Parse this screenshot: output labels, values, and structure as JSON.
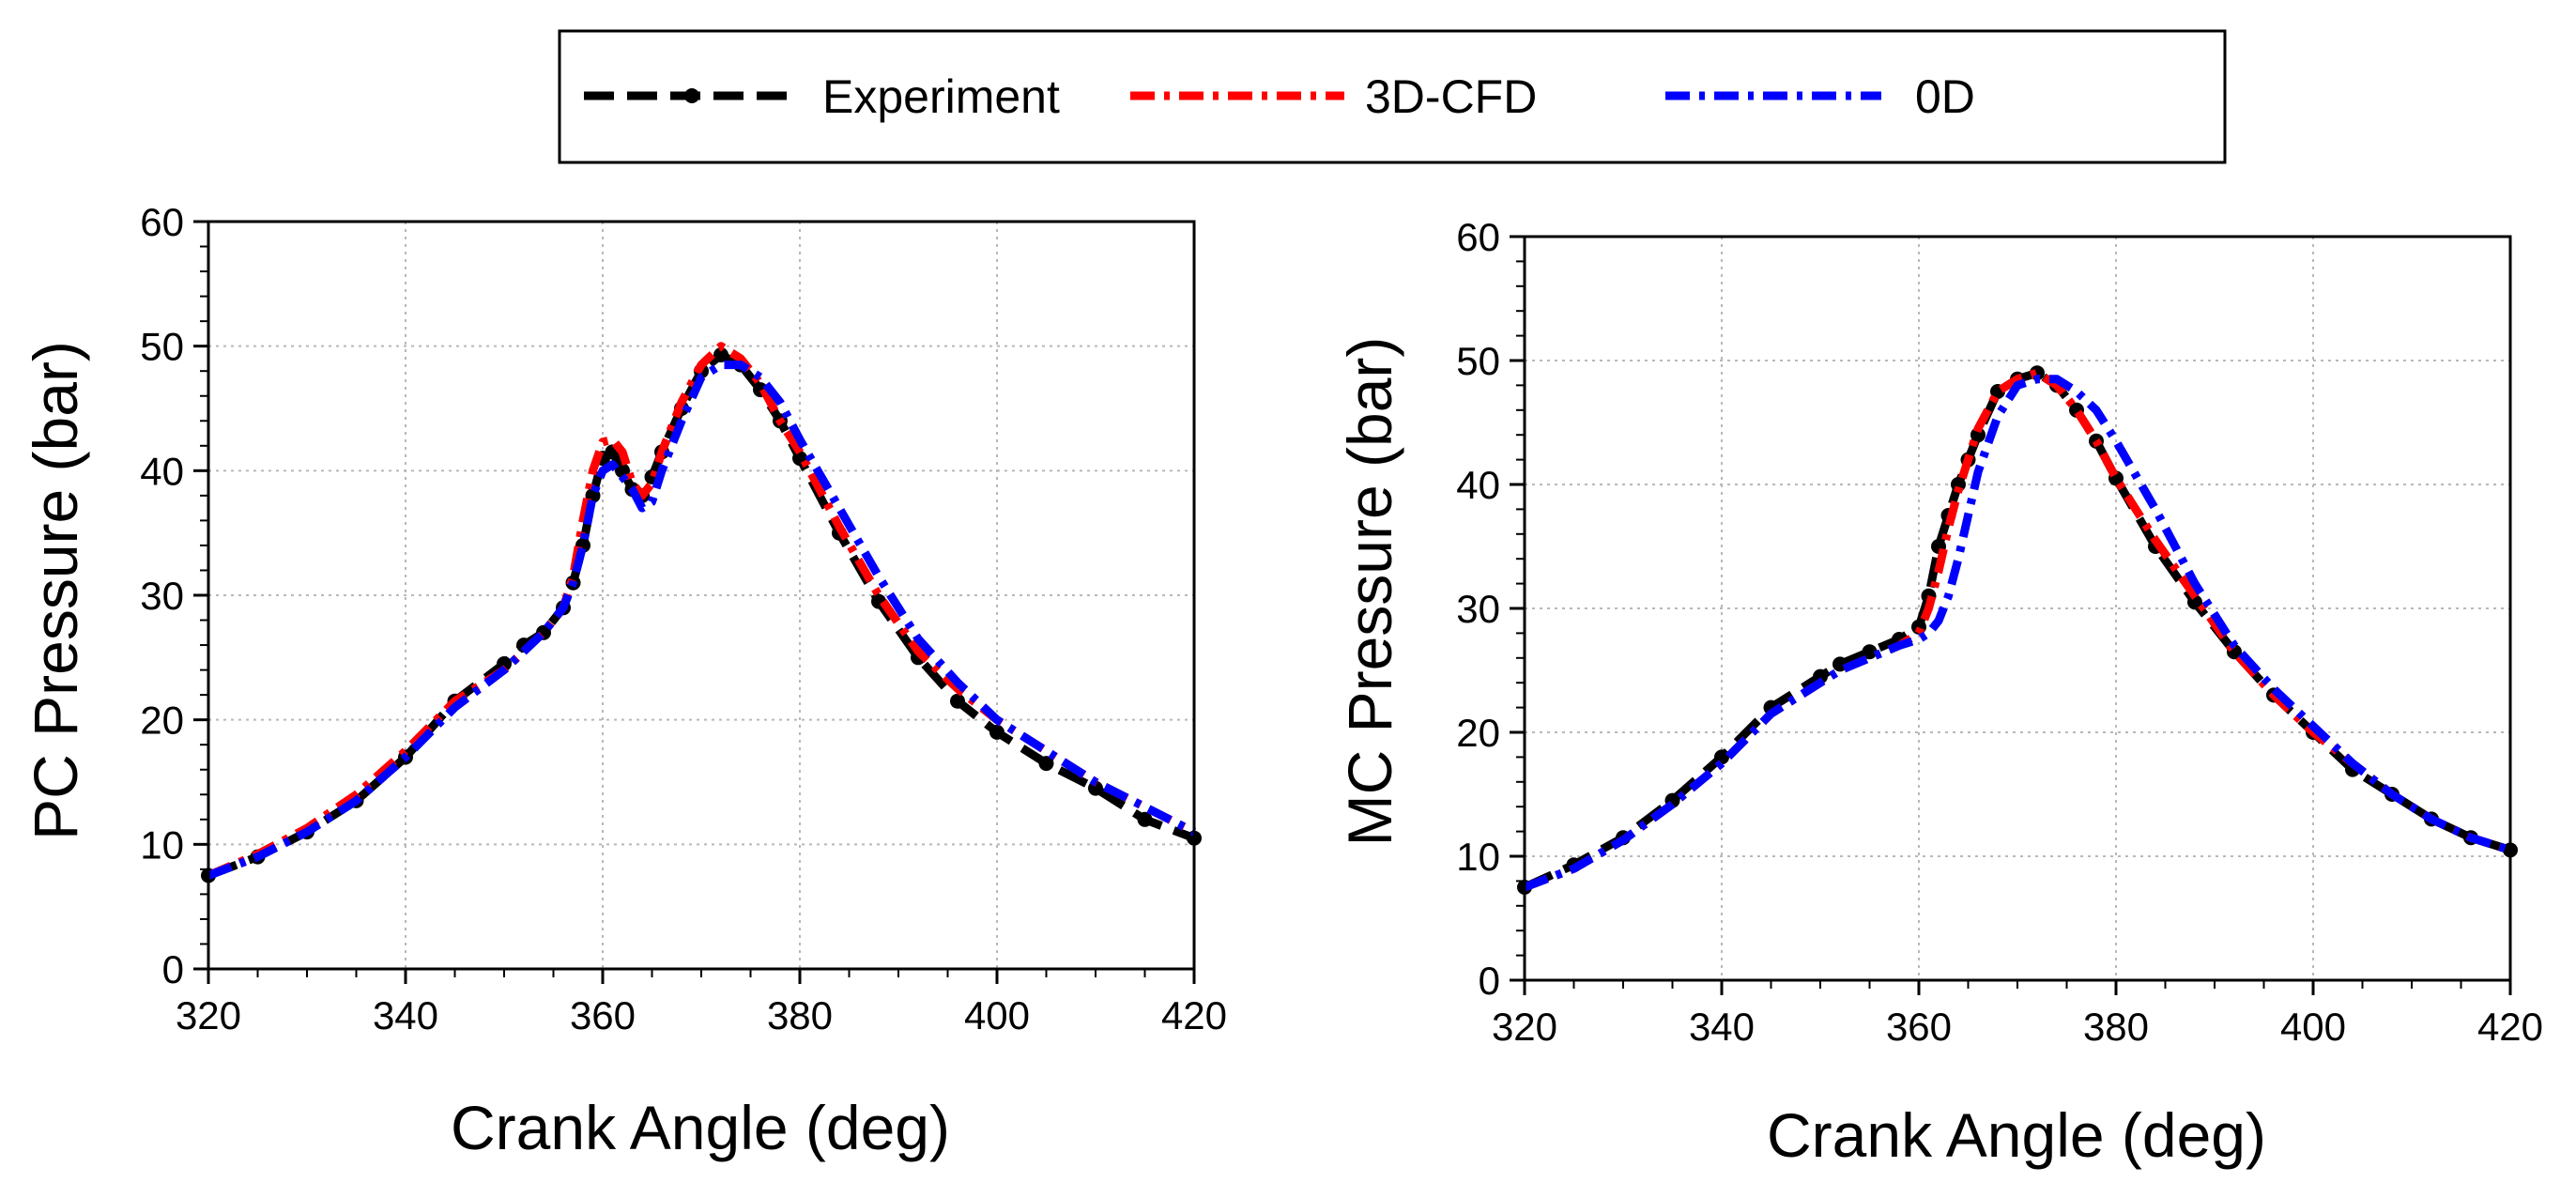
{
  "chart_data": {
    "type": "line",
    "legend": {
      "position": "top-center",
      "entries": [
        {
          "name": "Experiment",
          "color": "#000000",
          "style": "dashed-with-markers"
        },
        {
          "name": "3D-CFD",
          "color": "#ff0000",
          "style": "dash-dot"
        },
        {
          "name": "0D",
          "color": "#0000ff",
          "style": "dash-dot"
        }
      ]
    },
    "charts": [
      {
        "id": "pc",
        "xlabel": "Crank Angle (deg)",
        "ylabel": "PC Pressure (bar)",
        "xlim": [
          320,
          420
        ],
        "ylim": [
          0,
          60
        ],
        "xticks": [
          320,
          340,
          360,
          380,
          400,
          420
        ],
        "yticks": [
          0,
          10,
          20,
          30,
          40,
          50,
          60
        ],
        "grid": true,
        "series": [
          {
            "name": "Experiment",
            "x": [
              320,
              325,
              330,
              335,
              340,
              345,
              350,
              352,
              354,
              356,
              357,
              358,
              359,
              360,
              361,
              362,
              363,
              364,
              365,
              366,
              368,
              370,
              372,
              374,
              376,
              378,
              380,
              384,
              388,
              392,
              396,
              400,
              405,
              410,
              415,
              420
            ],
            "y": [
              7.5,
              9.0,
              11.0,
              13.5,
              17.0,
              21.5,
              24.5,
              26.0,
              27.0,
              29.0,
              31.0,
              34.0,
              38.0,
              41.0,
              41.5,
              40.0,
              38.5,
              38.0,
              39.5,
              41.5,
              45.0,
              48.0,
              49.3,
              48.5,
              46.5,
              44.0,
              41.0,
              35.0,
              29.5,
              25.0,
              21.5,
              19.0,
              16.5,
              14.5,
              12.0,
              10.5
            ]
          },
          {
            "name": "3D-CFD",
            "x": [
              320,
              325,
              330,
              335,
              340,
              345,
              350,
              352,
              354,
              356,
              357,
              358,
              359,
              360,
              361,
              362,
              363,
              364,
              365,
              366,
              368,
              370,
              372,
              374,
              376,
              378,
              380,
              384,
              388,
              392,
              396,
              400,
              405,
              410,
              415,
              420
            ],
            "y": [
              7.5,
              9.2,
              11.3,
              14.0,
              17.5,
              21.5,
              24.0,
              25.5,
              27.0,
              29.0,
              31.5,
              36.0,
              40.0,
              42.3,
              42.5,
              41.5,
              39.0,
              38.0,
              39.0,
              41.5,
              45.5,
              48.5,
              50.0,
              49.0,
              47.0,
              44.0,
              41.5,
              35.5,
              30.0,
              25.5,
              22.5,
              20.0,
              17.5,
              15.0,
              13.0,
              11.0
            ]
          },
          {
            "name": "0D",
            "x": [
              320,
              325,
              330,
              335,
              340,
              345,
              350,
              352,
              354,
              356,
              357,
              358,
              359,
              360,
              361,
              362,
              363,
              364,
              365,
              366,
              368,
              370,
              372,
              374,
              376,
              378,
              380,
              384,
              388,
              392,
              396,
              400,
              405,
              410,
              415,
              420
            ],
            "y": [
              7.5,
              9.0,
              11.0,
              13.5,
              17.0,
              21.0,
              24.0,
              25.5,
              27.0,
              29.0,
              31.0,
              34.0,
              38.0,
              40.0,
              40.5,
              39.5,
              38.5,
              37.0,
              37.5,
              40.0,
              44.0,
              47.5,
              48.5,
              48.5,
              47.5,
              45.5,
              42.5,
              37.0,
              31.5,
              26.5,
              23.0,
              20.0,
              17.5,
              15.0,
              13.0,
              11.0
            ]
          }
        ]
      },
      {
        "id": "mc",
        "xlabel": "Crank Angle (deg)",
        "ylabel": "MC Pressure (bar)",
        "xlim": [
          320,
          420
        ],
        "ylim": [
          0,
          60
        ],
        "xticks": [
          320,
          340,
          360,
          380,
          400,
          420
        ],
        "yticks": [
          0,
          10,
          20,
          30,
          40,
          50,
          60
        ],
        "grid": true,
        "series": [
          {
            "name": "Experiment",
            "x": [
              320,
              325,
              330,
              335,
              340,
              345,
              350,
              352,
              355,
              358,
              360,
              361,
              362,
              363,
              364,
              365,
              366,
              368,
              370,
              372,
              374,
              376,
              378,
              380,
              384,
              388,
              392,
              396,
              400,
              404,
              408,
              412,
              416,
              420
            ],
            "y": [
              7.5,
              9.3,
              11.5,
              14.5,
              18.0,
              22.0,
              24.5,
              25.5,
              26.5,
              27.5,
              28.5,
              31.0,
              35.0,
              37.5,
              40.0,
              42.0,
              44.0,
              47.5,
              48.5,
              49.0,
              48.0,
              46.0,
              43.5,
              40.5,
              35.0,
              30.5,
              26.5,
              23.0,
              20.0,
              17.0,
              15.0,
              13.0,
              11.5,
              10.5
            ]
          },
          {
            "name": "3D-CFD",
            "x": [
              320,
              325,
              330,
              335,
              340,
              345,
              350,
              352,
              355,
              358,
              360,
              361,
              362,
              363,
              364,
              365,
              366,
              368,
              370,
              372,
              374,
              376,
              378,
              380,
              384,
              388,
              392,
              396,
              400,
              404,
              408,
              412,
              416,
              420
            ],
            "y": [
              7.5,
              9.0,
              11.3,
              14.2,
              17.5,
              21.5,
              24.0,
              25.0,
              26.0,
              27.0,
              28.0,
              30.0,
              33.0,
              36.5,
              39.5,
              42.0,
              44.5,
              47.5,
              48.5,
              49.0,
              48.0,
              46.0,
              43.5,
              40.5,
              35.5,
              31.0,
              26.5,
              23.0,
              20.0,
              17.5,
              15.0,
              13.0,
              11.5,
              10.5
            ]
          },
          {
            "name": "0D",
            "x": [
              320,
              325,
              330,
              335,
              340,
              345,
              350,
              352,
              355,
              358,
              360,
              361,
              362,
              363,
              364,
              365,
              366,
              368,
              370,
              372,
              374,
              376,
              378,
              380,
              384,
              388,
              392,
              396,
              400,
              404,
              408,
              412,
              416,
              420
            ],
            "y": [
              7.5,
              9.0,
              11.3,
              14.2,
              17.5,
              21.5,
              24.0,
              25.0,
              26.0,
              27.0,
              27.5,
              28.0,
              29.0,
              31.0,
              34.0,
              37.5,
              41.0,
              45.5,
              48.0,
              48.5,
              48.5,
              47.5,
              46.0,
              43.5,
              38.0,
              32.0,
              27.0,
              23.5,
              20.5,
              17.5,
              15.0,
              13.0,
              11.5,
              10.5
            ]
          }
        ]
      }
    ]
  }
}
